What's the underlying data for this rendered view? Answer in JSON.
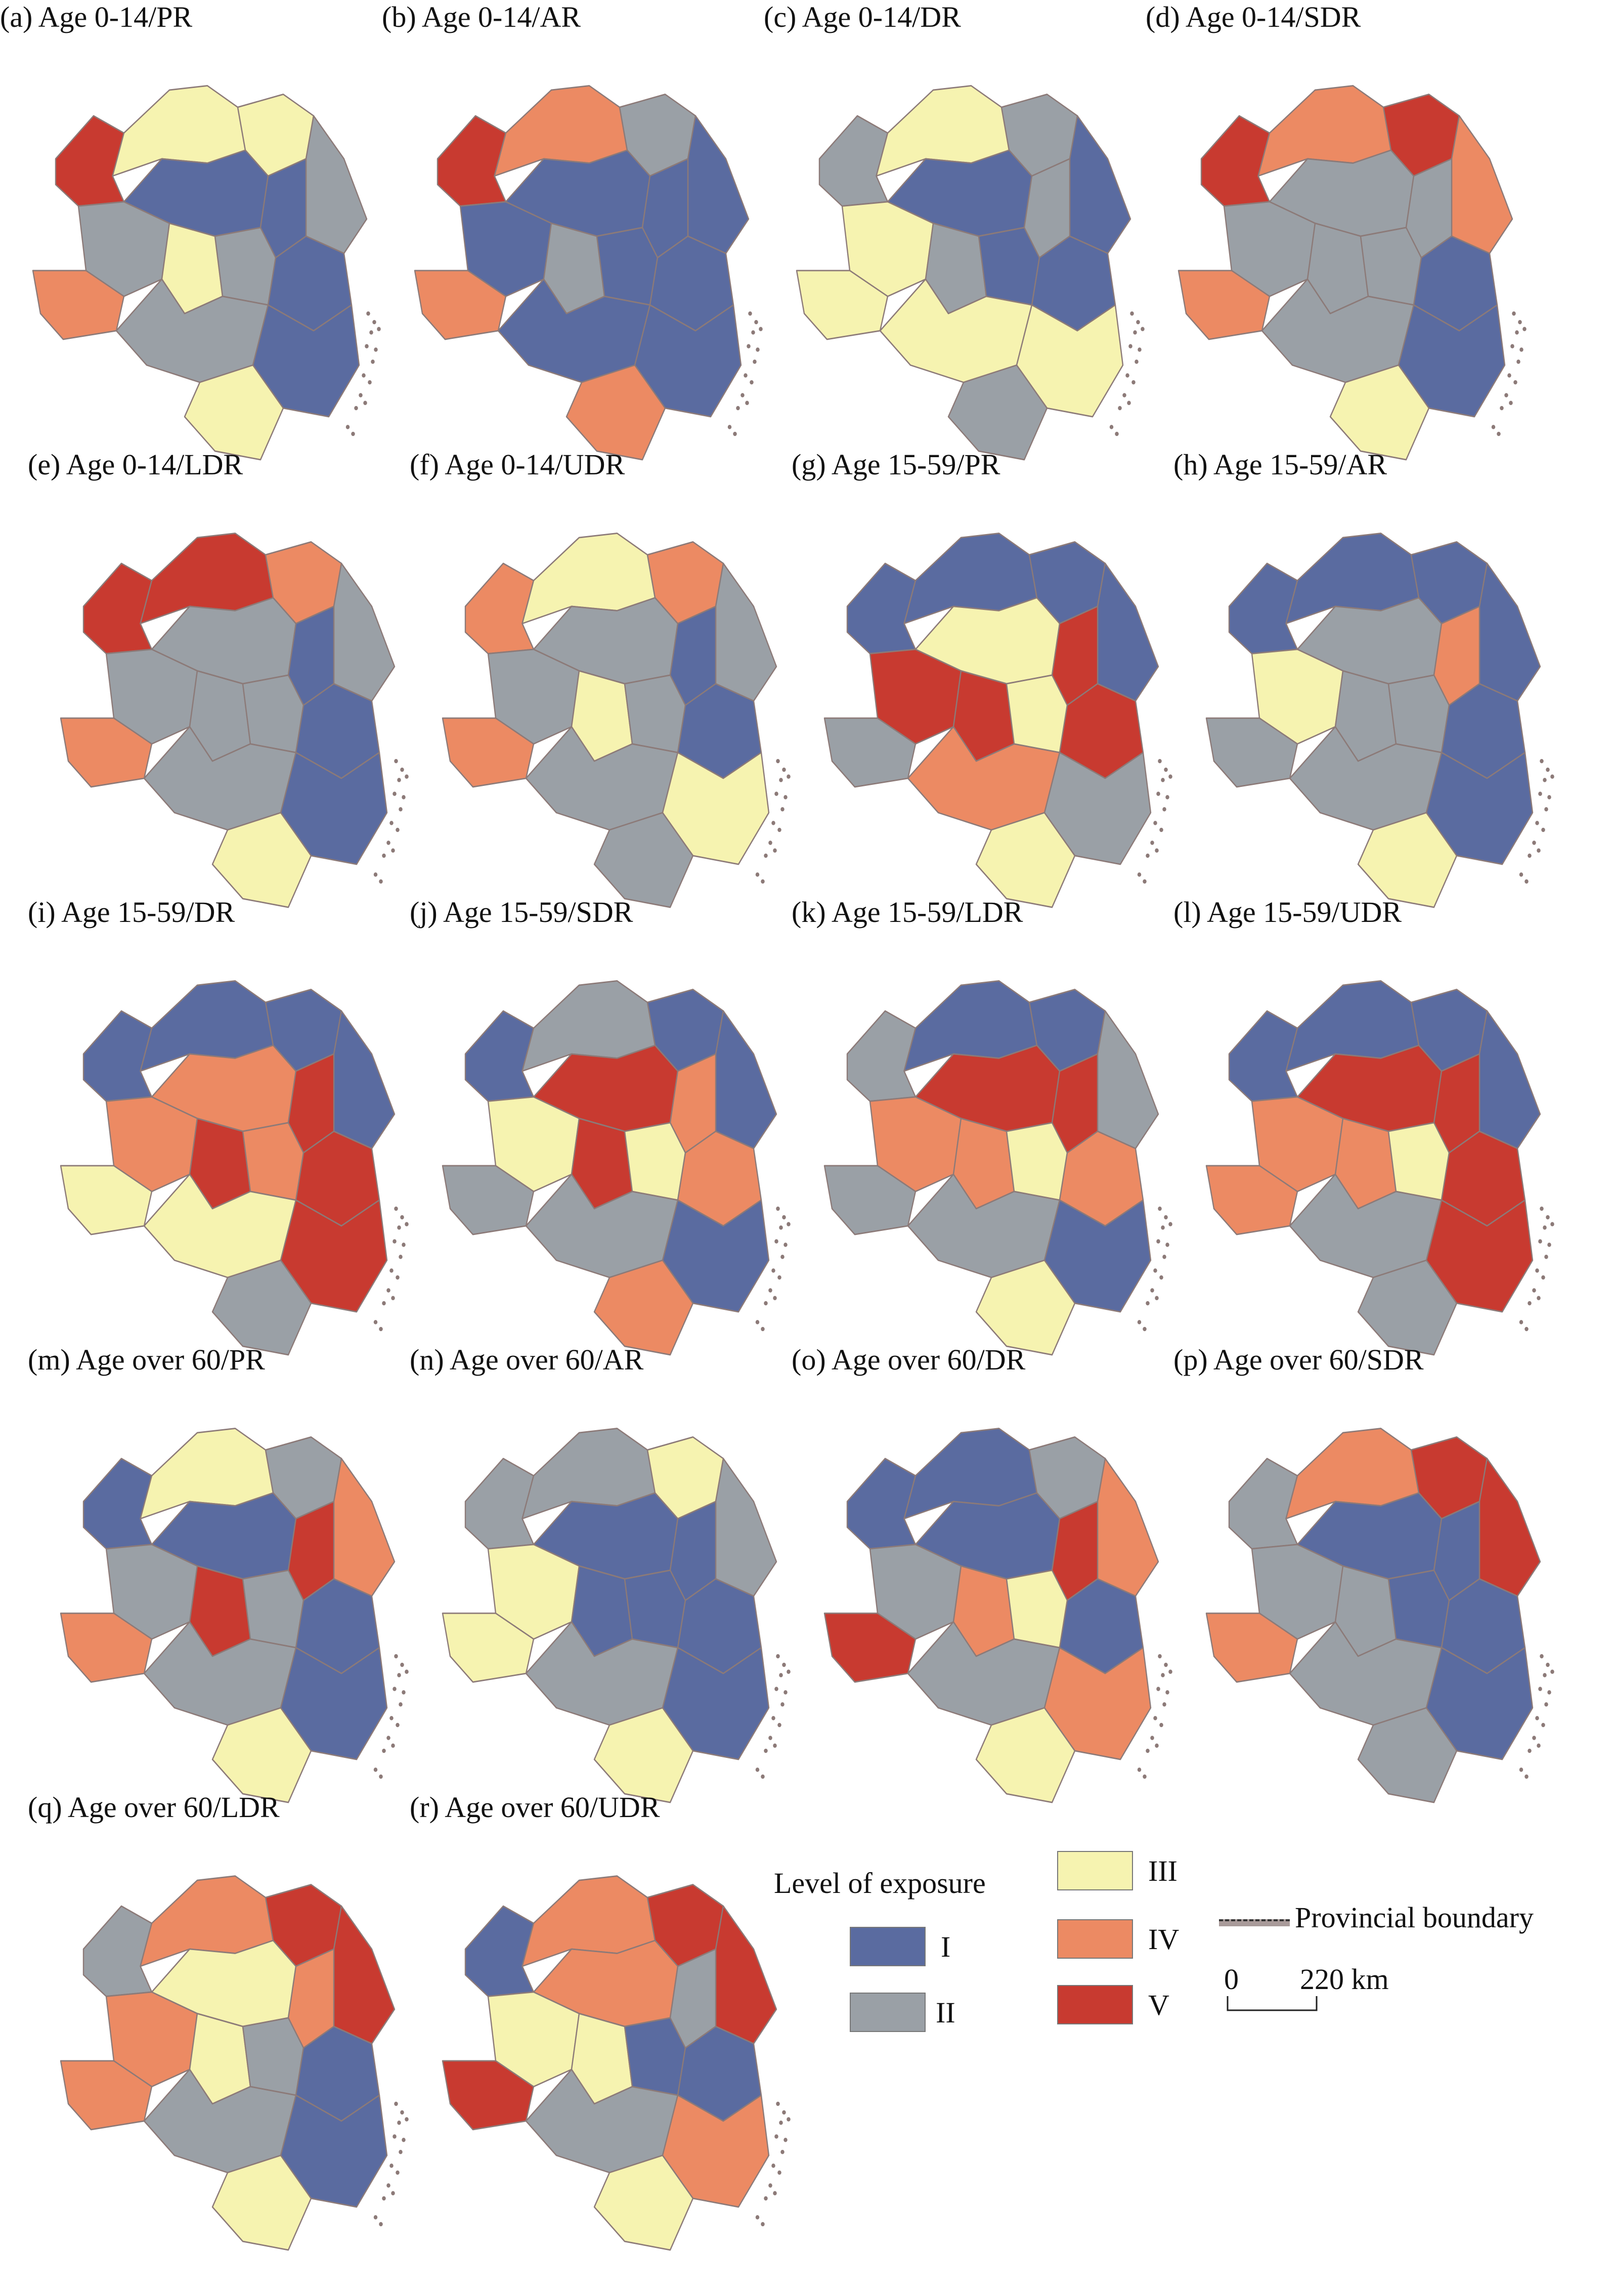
{
  "colors": {
    "I": "#5a6ba0",
    "II": "#9aa0a6",
    "III": "#f6f3b0",
    "IV": "#ec8a63",
    "V": "#c83a30",
    "boundary": "#8c7a78"
  },
  "panels": [
    {
      "label": "(a) Age 0-14/PR",
      "levels": [
        "V",
        "III",
        "III",
        "II",
        "I",
        "I",
        "II",
        "IV",
        "III",
        "II",
        "I",
        "II",
        "I",
        "III"
      ]
    },
    {
      "label": "(b) Age 0-14/AR",
      "levels": [
        "V",
        "IV",
        "II",
        "I",
        "I",
        "I",
        "I",
        "IV",
        "II",
        "I",
        "I",
        "I",
        "I",
        "IV"
      ]
    },
    {
      "label": "(c) Age 0-14/DR",
      "levels": [
        "II",
        "III",
        "II",
        "I",
        "I",
        "II",
        "III",
        "III",
        "II",
        "I",
        "I",
        "III",
        "III",
        "II"
      ]
    },
    {
      "label": "(d) Age 0-14/SDR",
      "levels": [
        "V",
        "IV",
        "V",
        "IV",
        "II",
        "II",
        "II",
        "IV",
        "II",
        "II",
        "I",
        "II",
        "I",
        "III"
      ]
    },
    {
      "label": "(e) Age 0-14/LDR",
      "levels": [
        "V",
        "V",
        "IV",
        "II",
        "II",
        "I",
        "II",
        "IV",
        "II",
        "II",
        "I",
        "II",
        "I",
        "III"
      ]
    },
    {
      "label": "(f) Age 0-14/UDR",
      "levels": [
        "IV",
        "III",
        "IV",
        "II",
        "II",
        "I",
        "II",
        "IV",
        "III",
        "II",
        "I",
        "II",
        "III",
        "II"
      ]
    },
    {
      "label": "(g) Age 15-59/PR",
      "levels": [
        "I",
        "I",
        "I",
        "I",
        "III",
        "V",
        "V",
        "II",
        "V",
        "III",
        "V",
        "IV",
        "II",
        "III"
      ]
    },
    {
      "label": "(h) Age 15-59/AR",
      "levels": [
        "I",
        "I",
        "I",
        "I",
        "II",
        "IV",
        "III",
        "II",
        "II",
        "II",
        "I",
        "II",
        "I",
        "III"
      ]
    },
    {
      "label": "(i) Age 15-59/DR",
      "levels": [
        "I",
        "I",
        "I",
        "I",
        "IV",
        "V",
        "IV",
        "III",
        "V",
        "IV",
        "V",
        "III",
        "V",
        "II"
      ]
    },
    {
      "label": "(j) Age 15-59/SDR",
      "levels": [
        "I",
        "II",
        "I",
        "I",
        "V",
        "IV",
        "III",
        "II",
        "V",
        "III",
        "IV",
        "II",
        "I",
        "IV"
      ]
    },
    {
      "label": "(k) Age 15-59/LDR",
      "levels": [
        "II",
        "I",
        "I",
        "II",
        "V",
        "V",
        "IV",
        "II",
        "IV",
        "III",
        "IV",
        "II",
        "I",
        "III"
      ]
    },
    {
      "label": "(l) Age 15-59/UDR",
      "levels": [
        "I",
        "I",
        "I",
        "I",
        "V",
        "V",
        "IV",
        "IV",
        "IV",
        "III",
        "V",
        "II",
        "V",
        "II"
      ]
    },
    {
      "label": "(m) Age over 60/PR",
      "levels": [
        "I",
        "III",
        "II",
        "IV",
        "I",
        "V",
        "II",
        "IV",
        "V",
        "II",
        "I",
        "II",
        "I",
        "III"
      ]
    },
    {
      "label": "(n) Age over 60/AR",
      "levels": [
        "II",
        "II",
        "III",
        "II",
        "I",
        "I",
        "III",
        "III",
        "I",
        "I",
        "I",
        "II",
        "I",
        "III"
      ]
    },
    {
      "label": "(o) Age over 60/DR",
      "levels": [
        "I",
        "I",
        "II",
        "IV",
        "I",
        "V",
        "II",
        "V",
        "IV",
        "III",
        "I",
        "II",
        "IV",
        "III"
      ]
    },
    {
      "label": "(p) Age over 60/SDR",
      "levels": [
        "II",
        "IV",
        "V",
        "V",
        "I",
        "I",
        "II",
        "IV",
        "II",
        "I",
        "I",
        "II",
        "I",
        "II"
      ]
    },
    {
      "label": "(q) Age over 60/LDR",
      "levels": [
        "II",
        "IV",
        "V",
        "V",
        "III",
        "IV",
        "IV",
        "IV",
        "III",
        "II",
        "I",
        "II",
        "I",
        "III"
      ]
    },
    {
      "label": "(r) Age over 60/UDR",
      "levels": [
        "I",
        "IV",
        "V",
        "V",
        "IV",
        "II",
        "III",
        "V",
        "III",
        "I",
        "I",
        "II",
        "IV",
        "III"
      ]
    }
  ],
  "legend": {
    "title": "Level of exposure",
    "items": [
      {
        "key": "I",
        "label": "I"
      },
      {
        "key": "II",
        "label": "II"
      },
      {
        "key": "III",
        "label": "III"
      },
      {
        "key": "IV",
        "label": "IV"
      },
      {
        "key": "V",
        "label": "V"
      }
    ],
    "boundary_label": "Provincial boundary",
    "scale_zero": "0",
    "scale_value": "220 km"
  }
}
